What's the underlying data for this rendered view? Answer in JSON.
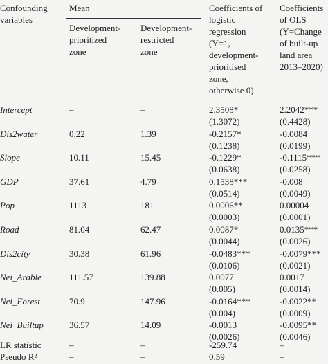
{
  "table": {
    "header": {
      "variable": [
        "Confounding",
        "variables"
      ],
      "mean": "Mean",
      "mean_columns": [
        [
          "Development-",
          "prioritized",
          "zone"
        ],
        [
          "Development-",
          "restricted",
          "zone"
        ]
      ],
      "logit": [
        "Coefficients of",
        "logistic",
        "regression",
        "(Y=1,",
        "development-",
        "prioritised",
        "zone,",
        "otherwise 0)"
      ],
      "ols": [
        "Coefficients",
        "of OLS",
        "(Y=Change",
        "of built-up",
        "land area",
        "2013–2020)"
      ]
    },
    "rows": [
      {
        "name": "Intercept",
        "mean1": "–",
        "mean2": "–",
        "logit": "2.3508*",
        "logit_se": "(1.3072)",
        "ols": "2.2042***",
        "ols_se": "(0.4428)"
      },
      {
        "name": "Dis2water",
        "mean1": "0.22",
        "mean2": "1.39",
        "logit": "-0.2157*",
        "logit_se": "(0.1238)",
        "ols": "-0.0084",
        "ols_se": "(0.0199)"
      },
      {
        "name": "Slope",
        "mean1": "10.11",
        "mean2": "15.45",
        "logit": "-0.1229*",
        "logit_se": "(0.0638)",
        "ols": "-0.1115***",
        "ols_se": "(0.0258)"
      },
      {
        "name": "GDP",
        "mean1": "37.61",
        "mean2": "4.79",
        "logit": "0.1538***",
        "logit_se": "(0.0514)",
        "ols": "-0.008",
        "ols_se": "(0.0049)"
      },
      {
        "name": "Pop",
        "mean1": "1113",
        "mean2": "181",
        "logit": "0.0006**",
        "logit_se": "(0.0003)",
        "ols": "0.00004",
        "ols_se": "(0.0001)"
      },
      {
        "name": "Road",
        "mean1": "81.04",
        "mean2": "62.47",
        "logit": "0.0087*",
        "logit_se": "(0.0044)",
        "ols": "0.0135***",
        "ols_se": "(0.0026)"
      },
      {
        "name": "Dis2city",
        "mean1": "30.38",
        "mean2": "61.96",
        "logit": "-0.0483***",
        "logit_se": "(0.0106)",
        "ols": "-0.0079***",
        "ols_se": "(0.0021)"
      },
      {
        "name": "Nei_Arable",
        "mean1": "111.57",
        "mean2": "139.88",
        "logit": "0.0077",
        "logit_se": "(0.005)",
        "ols": "0.0017",
        "ols_se": "(0.0014)"
      },
      {
        "name": "Nei_Forest",
        "mean1": "70.9",
        "mean2": "147.96",
        "logit": "-0.0164***",
        "logit_se": "(0.004)",
        "ols": "-0.0022**",
        "ols_se": "(0.0009)"
      },
      {
        "name": "Nei_Builtup",
        "mean1": "36.57",
        "mean2": "14.09",
        "logit": "-0.0013",
        "logit_se": "(0.0026)",
        "ols": "-0.0095**",
        "ols_se": "(0.0046)"
      }
    ],
    "stats": [
      {
        "name": "LR statistic",
        "mean1": "–",
        "mean2": "–",
        "logit": "-259.74",
        "ols": "–"
      },
      {
        "name": "Pseudo R²",
        "mean1": "–",
        "mean2": "–",
        "logit": "0.59",
        "ols": "–"
      }
    ]
  }
}
